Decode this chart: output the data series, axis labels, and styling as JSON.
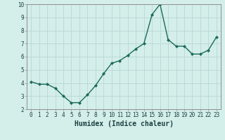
{
  "x": [
    0,
    1,
    2,
    3,
    4,
    5,
    6,
    7,
    8,
    9,
    10,
    11,
    12,
    13,
    14,
    15,
    16,
    17,
    18,
    19,
    20,
    21,
    22,
    23
  ],
  "y": [
    4.1,
    3.9,
    3.9,
    3.6,
    3.0,
    2.5,
    2.5,
    3.1,
    3.8,
    4.7,
    5.5,
    5.7,
    6.1,
    6.6,
    7.0,
    9.2,
    10.0,
    7.3,
    6.8,
    6.8,
    6.2,
    6.2,
    6.5,
    7.5
  ],
  "line_color": "#1a6b5a",
  "marker": "D",
  "marker_size": 2.0,
  "bg_color": "#d4eeea",
  "grid_color": "#b8d8d4",
  "xlabel": "Humidex (Indice chaleur)",
  "ylim": [
    2,
    10
  ],
  "xlim_min": -0.5,
  "xlim_max": 23.5,
  "yticks": [
    2,
    3,
    4,
    5,
    6,
    7,
    8,
    9,
    10
  ],
  "xticks": [
    0,
    1,
    2,
    3,
    4,
    5,
    6,
    7,
    8,
    9,
    10,
    11,
    12,
    13,
    14,
    15,
    16,
    17,
    18,
    19,
    20,
    21,
    22,
    23
  ],
  "tick_fontsize": 5.5,
  "xlabel_fontsize": 7.0,
  "line_width": 1.0
}
